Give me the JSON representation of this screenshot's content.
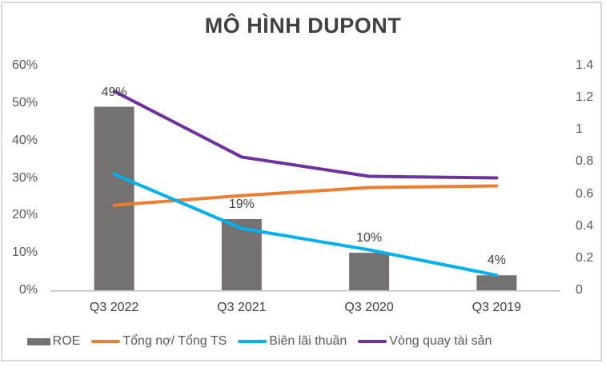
{
  "title": "MÔ HÌNH DUPONT",
  "colors": {
    "bar_gray": "#757171",
    "orange": "#ED7D31",
    "blue": "#00B0F0",
    "purple": "#7030A0",
    "axis_line": "#BFBFBF",
    "frame_border": "#D9D9D9",
    "title_text": "#404040",
    "axis_text": "#595959",
    "category_text": "#404040",
    "data_label_text": "#404040",
    "legend_text": "#595959"
  },
  "chart_data": {
    "type": "bar",
    "subtype": "combo-bar-line-dual-axis",
    "title": "MÔ HÌNH DUPONT",
    "categories": [
      "Q3 2022",
      "Q3 2021",
      "Q3 2020",
      "Q3 2019"
    ],
    "series": [
      {
        "id": "roe",
        "name": "ROE",
        "type": "bar",
        "axis": "left",
        "color": "#757171",
        "values": [
          49,
          19,
          10,
          4
        ],
        "labels": [
          "49%",
          "19%",
          "10%",
          "4%"
        ]
      },
      {
        "id": "tong-no-tong-ts",
        "name": "Tổng nợ/ Tổng TS",
        "type": "line",
        "axis": "right",
        "color": "#ED7D31",
        "values": [
          0.53,
          0.59,
          0.64,
          0.65
        ]
      },
      {
        "id": "bien-lai-thuan",
        "name": "Biên lãi thuần",
        "type": "line",
        "axis": "left",
        "color": "#00B0F0",
        "values": [
          31,
          16.5,
          10.8,
          4
        ]
      },
      {
        "id": "vong-quay-tai-san",
        "name": "Vòng quay tài sản",
        "type": "line",
        "axis": "right",
        "color": "#7030A0",
        "values": [
          1.24,
          0.83,
          0.71,
          0.7
        ]
      }
    ],
    "left_axis": {
      "min": 0,
      "max": 60,
      "unit": "%",
      "ticks": [
        "0%",
        "10%",
        "20%",
        "30%",
        "40%",
        "50%",
        "60%"
      ]
    },
    "right_axis": {
      "min": 0,
      "max": 1.4,
      "unit": "",
      "ticks": [
        "0",
        "0.2",
        "0.4",
        "0.6",
        "0.8",
        "1",
        "1.2",
        "1.4"
      ]
    },
    "xlabel": "",
    "ylabel": "",
    "grid": false,
    "legend_position": "bottom"
  }
}
